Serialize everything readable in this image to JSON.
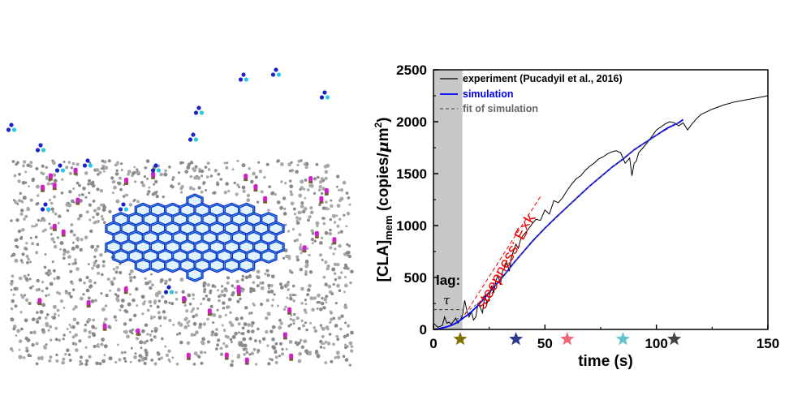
{
  "chart_data": {
    "type": "line",
    "xlabel": "time (s)",
    "ylabel": "[CLA]",
    "ylabel_sub": "mem",
    "ylabel_units_prefix": "(copies/",
    "ylabel_units_mu": "μ",
    "ylabel_units_m": "m",
    "ylabel_units_exp": "2",
    "ylabel_units_suffix": ")",
    "xlim": [
      0,
      150
    ],
    "ylim": [
      0,
      2500
    ],
    "xticks": [
      "0",
      "50",
      "100",
      "150"
    ],
    "yticks": [
      "0",
      "500",
      "1000",
      "1500",
      "2000",
      "2500"
    ],
    "grid": false,
    "legend_position": "top-left",
    "series": [
      {
        "name": "experiment (Pucadyil et al., 2016)",
        "color": "#000000",
        "x": [
          0,
          2,
          4,
          5,
          6,
          7,
          8,
          9,
          10,
          11,
          12,
          13,
          14,
          15,
          16,
          17,
          18,
          19,
          20,
          21,
          22,
          23,
          24,
          25,
          26,
          27,
          28,
          29,
          30,
          31,
          32,
          33,
          34,
          35,
          36,
          37,
          38,
          39,
          40,
          42,
          44,
          46,
          48,
          50,
          52,
          54,
          56,
          58,
          60,
          62,
          64,
          66,
          68,
          70,
          72,
          74,
          76,
          78,
          80,
          82,
          84,
          86,
          88,
          89,
          90,
          91,
          92,
          94,
          96,
          98,
          100,
          102,
          104,
          106,
          108,
          110,
          112,
          114,
          116,
          118,
          120,
          125,
          130,
          135,
          140,
          145,
          150
        ],
        "y": [
          60,
          20,
          40,
          120,
          60,
          70,
          50,
          80,
          110,
          60,
          90,
          130,
          280,
          180,
          120,
          170,
          90,
          120,
          250,
          210,
          160,
          330,
          250,
          300,
          420,
          350,
          470,
          520,
          430,
          560,
          600,
          640,
          560,
          700,
          760,
          820,
          780,
          860,
          900,
          950,
          1010,
          1060,
          1050,
          1150,
          1110,
          1240,
          1220,
          1270,
          1340,
          1400,
          1450,
          1480,
          1530,
          1570,
          1600,
          1640,
          1660,
          1690,
          1710,
          1720,
          1700,
          1600,
          1650,
          1480,
          1600,
          1620,
          1700,
          1750,
          1800,
          1860,
          1920,
          1950,
          1980,
          2000,
          1990,
          1960,
          1990,
          1920,
          1980,
          2030,
          2070,
          2120,
          2160,
          2190,
          2210,
          2230,
          2250
        ]
      },
      {
        "name": "simulation",
        "color": "#0000ff",
        "x": [
          0,
          2,
          4,
          6,
          8,
          10,
          12,
          14,
          16,
          18,
          20,
          22,
          24,
          26,
          28,
          30,
          32,
          34,
          36,
          38,
          40,
          42,
          44,
          46,
          48,
          50,
          55,
          60,
          65,
          70,
          75,
          80,
          85,
          90,
          95,
          100,
          105,
          110,
          112
        ],
        "y": [
          0,
          5,
          15,
          25,
          40,
          60,
          90,
          120,
          150,
          190,
          230,
          280,
          330,
          380,
          430,
          480,
          530,
          585,
          640,
          690,
          740,
          790,
          840,
          885,
          930,
          975,
          1080,
          1180,
          1280,
          1380,
          1470,
          1560,
          1640,
          1730,
          1800,
          1870,
          1940,
          1990,
          2020
        ]
      },
      {
        "name": "fit of simulation",
        "color": "#555555",
        "x": [
          10,
          20,
          30,
          40,
          50,
          60,
          70,
          80,
          90,
          100,
          110
        ],
        "y": [
          90,
          250,
          480,
          740,
          975,
          1180,
          1380,
          1560,
          1730,
          1870,
          1990
        ]
      }
    ],
    "markers": [
      {
        "x": 12,
        "color": "#807000"
      },
      {
        "x": 37,
        "color": "#2d3a8c"
      },
      {
        "x": 60,
        "color": "#ee6677"
      },
      {
        "x": 85,
        "color": "#66c2cc"
      },
      {
        "x": 108,
        "color": "#444444"
      }
    ],
    "lag_region": [
      0,
      13
    ],
    "lag_label": "lag:",
    "tau_label": "τ",
    "tau_level": 190,
    "steepness_label": "steepness: E×k",
    "annotation_color": "#ee0000"
  }
}
